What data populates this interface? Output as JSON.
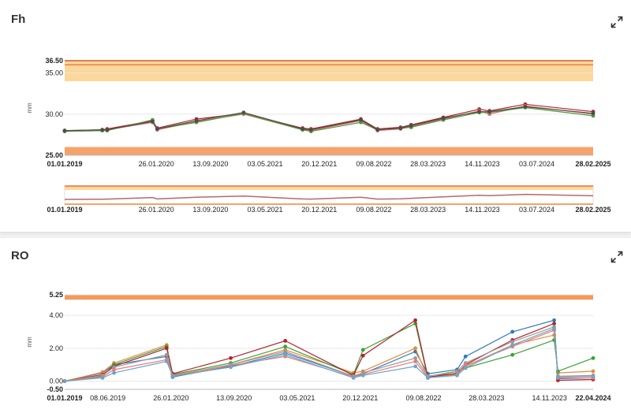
{
  "cards": {
    "fh": {
      "title": "Fh"
    },
    "ro": {
      "title": "RO"
    }
  },
  "chart_data": [
    {
      "type": "line",
      "title": "Fh",
      "ylabel": "mm",
      "ylim": [
        25,
        36.5
      ],
      "yticks": [
        "25.00",
        "30.00",
        "35.00",
        "36.50"
      ],
      "date_range": [
        "2019-01-01",
        "2025-02-28"
      ],
      "xticks": [
        {
          "date": "2019-01-01",
          "label": "01.01.2019",
          "bold": true
        },
        {
          "date": "2020-01-26",
          "label": "26.01.2020",
          "bold": false
        },
        {
          "date": "2020-09-13",
          "label": "13.09.2020",
          "bold": false
        },
        {
          "date": "2021-05-03",
          "label": "03.05.2021",
          "bold": false
        },
        {
          "date": "2021-12-20",
          "label": "20.12.2021",
          "bold": false
        },
        {
          "date": "2022-08-09",
          "label": "09.08.2022",
          "bold": false
        },
        {
          "date": "2023-03-28",
          "label": "28.03.2023",
          "bold": false
        },
        {
          "date": "2023-11-14",
          "label": "14.11.2023",
          "bold": false
        },
        {
          "date": "2024-07-03",
          "label": "03.07.2024",
          "bold": false
        },
        {
          "date": "2025-02-28",
          "label": "28.02.2025",
          "bold": true
        }
      ],
      "bands": [
        {
          "from": 34.0,
          "to": 36.5,
          "color": "#fcd79a"
        },
        {
          "from": 25.0,
          "to": 26.0,
          "color": "#f5a36a"
        }
      ],
      "lines": [
        {
          "value": 36.5,
          "color": "#d9572b"
        },
        {
          "value": 36.0,
          "color": "#e8804a"
        }
      ],
      "x_dates": [
        "2019-01-01",
        "2019-06-10",
        "2019-07-01",
        "2020-01-10",
        "2020-01-30",
        "2020-07-15",
        "2021-02-01",
        "2021-10-10",
        "2021-11-15",
        "2022-06-15",
        "2022-08-25",
        "2022-12-01",
        "2023-01-15",
        "2023-06-01",
        "2023-11-01",
        "2023-12-15",
        "2024-05-15",
        "2025-02-28"
      ],
      "series": [
        {
          "color": "#b5222b",
          "values": [
            28.0,
            28.1,
            28.2,
            29.2,
            28.3,
            29.4,
            30.1,
            28.3,
            28.2,
            29.4,
            28.2,
            28.4,
            28.7,
            29.6,
            30.6,
            30.4,
            31.2,
            30.3
          ]
        },
        {
          "color": "#e06e6e",
          "values": [
            27.9,
            28.0,
            28.1,
            29.0,
            28.1,
            29.1,
            30.0,
            28.1,
            28.0,
            29.2,
            28.0,
            28.2,
            28.5,
            29.4,
            30.4,
            30.0,
            31.0,
            30.0
          ]
        },
        {
          "color": "#4a9a3a",
          "values": [
            27.9,
            28.0,
            28.0,
            29.3,
            28.2,
            29.0,
            30.1,
            28.1,
            27.9,
            29.0,
            28.1,
            28.3,
            28.4,
            29.3,
            30.2,
            30.2,
            30.8,
            29.8
          ]
        },
        {
          "color": "#4d4d4d",
          "values": [
            28.0,
            28.1,
            28.1,
            29.1,
            28.2,
            29.2,
            30.2,
            28.2,
            28.1,
            29.3,
            28.1,
            28.3,
            28.6,
            29.5,
            30.3,
            30.3,
            30.9,
            30.1
          ]
        }
      ],
      "navigator": {
        "xticks": [
          "01.01.2019",
          "26.01.2020",
          "13.09.2020",
          "03.05.2021",
          "20.12.2021",
          "09.08.2022",
          "28.03.2023",
          "14.11.2023",
          "03.07.2024",
          "28.02.2025"
        ]
      }
    },
    {
      "type": "line",
      "title": "RO",
      "ylabel": "mm",
      "ylim": [
        -0.5,
        5.25
      ],
      "yticks": [
        "-0.50",
        "0.00",
        "2.00",
        "4.00",
        "5.25"
      ],
      "date_range": [
        "2019-01-01",
        "2024-04-22"
      ],
      "xticks": [
        {
          "date": "2019-01-01",
          "label": "01.01.2019",
          "bold": true
        },
        {
          "date": "2019-06-08",
          "label": "08.06.2019",
          "bold": false
        },
        {
          "date": "2020-01-26",
          "label": "26.01.2020",
          "bold": false
        },
        {
          "date": "2020-09-13",
          "label": "13.09.2020",
          "bold": false
        },
        {
          "date": "2021-05-03",
          "label": "03.05.2021",
          "bold": false
        },
        {
          "date": "2021-12-20",
          "label": "20.12.2021",
          "bold": false
        },
        {
          "date": "2022-08-09",
          "label": "09.08.2022",
          "bold": false
        },
        {
          "date": "2023-03-28",
          "label": "28.03.2023",
          "bold": false
        },
        {
          "date": "2023-11-14",
          "label": "14.11.2023",
          "bold": false
        },
        {
          "date": "2024-04-22",
          "label": "22.04.2024",
          "bold": true
        }
      ],
      "bands": [
        {
          "from": 4.95,
          "to": 5.25,
          "color": "#f29a5c"
        }
      ],
      "lines": [],
      "x_dates": [
        "2019-01-01",
        "2019-05-20",
        "2019-07-01",
        "2020-01-10",
        "2020-02-01",
        "2020-09-01",
        "2021-03-20",
        "2021-11-25",
        "2021-12-30",
        "2022-07-10",
        "2022-08-25",
        "2022-12-10",
        "2023-01-10",
        "2023-07-01",
        "2023-12-01",
        "2023-12-15",
        "2024-04-22"
      ],
      "series": [
        {
          "color": "#2e7ab8",
          "values": [
            0.0,
            0.5,
            1.0,
            1.5,
            0.25,
            0.9,
            1.7,
            0.3,
            0.45,
            1.8,
            0.45,
            0.7,
            1.5,
            3.0,
            3.7,
            0.15,
            0.2
          ]
        },
        {
          "color": "#e8893c",
          "values": [
            0.0,
            0.55,
            1.1,
            2.2,
            0.35,
            1.0,
            1.9,
            0.5,
            0.6,
            2.0,
            0.2,
            0.5,
            0.9,
            2.2,
            2.8,
            0.5,
            0.6
          ]
        },
        {
          "color": "#3aa03a",
          "values": [
            0.0,
            0.3,
            1.0,
            2.1,
            0.4,
            1.1,
            2.1,
            0.4,
            1.9,
            3.5,
            0.2,
            0.6,
            0.8,
            1.6,
            2.5,
            0.6,
            1.4
          ]
        },
        {
          "color": "#b5222b",
          "values": [
            0.0,
            0.4,
            0.9,
            2.0,
            0.45,
            1.4,
            2.45,
            0.35,
            1.55,
            3.7,
            0.25,
            0.45,
            1.0,
            2.5,
            3.5,
            0.05,
            0.1
          ]
        },
        {
          "color": "#999999",
          "values": [
            0.0,
            0.35,
            0.85,
            1.6,
            0.3,
            1.0,
            1.8,
            0.3,
            0.5,
            1.4,
            0.3,
            0.6,
            1.1,
            2.4,
            3.3,
            0.3,
            0.35
          ]
        },
        {
          "color": "#e87b7b",
          "values": [
            0.0,
            0.25,
            0.7,
            1.3,
            0.35,
            0.95,
            1.5,
            0.25,
            0.4,
            1.2,
            0.2,
            0.4,
            0.95,
            2.1,
            3.1,
            0.2,
            0.2
          ]
        },
        {
          "color": "#6aa6c9",
          "values": [
            0.0,
            0.2,
            0.5,
            1.2,
            0.3,
            0.85,
            1.6,
            0.2,
            0.35,
            0.9,
            0.2,
            0.35,
            0.8,
            2.2,
            3.2,
            0.25,
            0.3
          ]
        }
      ]
    }
  ]
}
